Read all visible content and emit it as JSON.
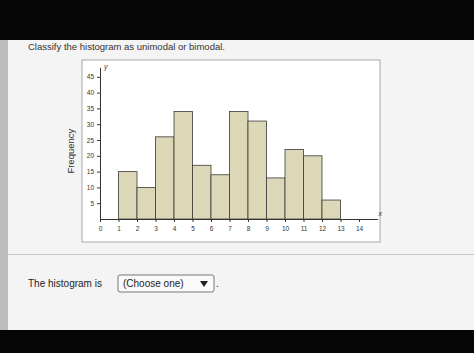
{
  "question": "Classify the histogram as unimodal or bimodal.",
  "chart_data": {
    "type": "histogram",
    "ylabel": "Frequency",
    "xlabel": "x",
    "y_axis_letter": "y",
    "bins": [
      1,
      2,
      3,
      4,
      5,
      6,
      7,
      8,
      9,
      10,
      11,
      12,
      13
    ],
    "values": [
      15,
      10,
      26,
      34,
      17,
      14,
      34,
      31,
      13,
      22,
      20,
      6
    ],
    "color": "#dcd7b6",
    "xlim": [
      0,
      15
    ],
    "ylim": [
      0,
      48
    ],
    "xticks": [
      0,
      1,
      2,
      3,
      4,
      5,
      6,
      7,
      8,
      9,
      10,
      11,
      12,
      13,
      14
    ],
    "yticks": [
      5,
      10,
      15,
      20,
      25,
      30,
      35,
      40,
      45
    ]
  },
  "answer": {
    "prompt": "The histogram is",
    "choice": "(Choose one)",
    "end": "."
  }
}
